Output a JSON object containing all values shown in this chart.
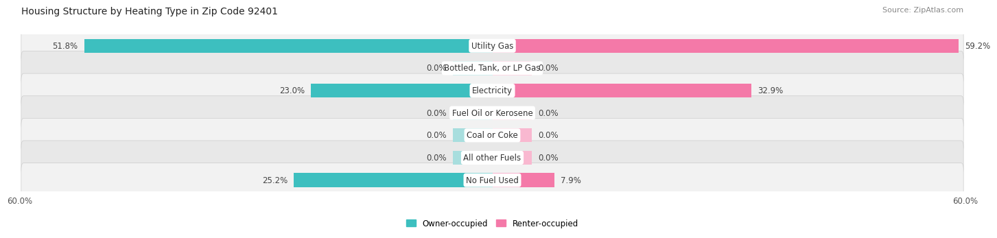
{
  "title": "Housing Structure by Heating Type in Zip Code 92401",
  "source": "Source: ZipAtlas.com",
  "categories": [
    "Utility Gas",
    "Bottled, Tank, or LP Gas",
    "Electricity",
    "Fuel Oil or Kerosene",
    "Coal or Coke",
    "All other Fuels",
    "No Fuel Used"
  ],
  "owner_values": [
    51.8,
    0.0,
    23.0,
    0.0,
    0.0,
    0.0,
    25.2
  ],
  "renter_values": [
    59.2,
    0.0,
    32.9,
    0.0,
    0.0,
    0.0,
    7.9
  ],
  "owner_color": "#3dbfbf",
  "renter_color": "#f479a8",
  "owner_color_light": "#a8dede",
  "renter_color_light": "#f9b8d0",
  "axis_max": 60.0,
  "row_bg_color": "#efefef",
  "row_bg_odd": "#e8e8e8",
  "title_fontsize": 10,
  "source_fontsize": 8,
  "value_fontsize": 8.5,
  "cat_fontsize": 8.5,
  "bar_height": 0.62,
  "zero_bar_width": 5.0
}
